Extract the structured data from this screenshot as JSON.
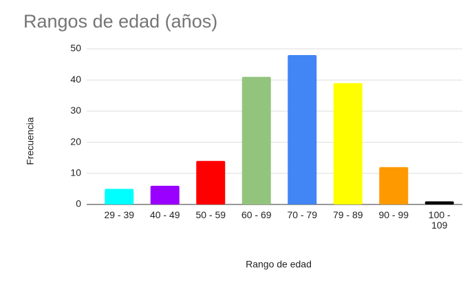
{
  "chart_data": {
    "type": "bar",
    "title": "Rangos de edad (años)",
    "x_label": "Rango de edad",
    "y_label": "Frecuencia",
    "categories": [
      "29 - 39",
      "40 - 49",
      "50 - 59",
      "60 - 69",
      "70 - 79",
      "79 - 89",
      "90 - 99",
      "100 - 109"
    ],
    "values": [
      5,
      6,
      14,
      41,
      48,
      39,
      12,
      1
    ],
    "colors": [
      "#00ffff",
      "#9900ff",
      "#ff0000",
      "#93c47d",
      "#4285f4",
      "#ffff00",
      "#ff9900",
      "#000000"
    ],
    "ylim": [
      0,
      50
    ],
    "yticks": [
      0,
      10,
      20,
      30,
      40,
      50
    ],
    "grid": true
  }
}
